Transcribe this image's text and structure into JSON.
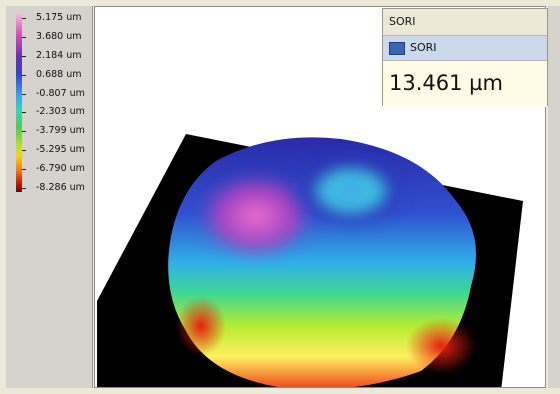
{
  "colorbar": {
    "labels": [
      "5.175 um",
      "3.680 um",
      "2.184 um",
      "0.688 um",
      "-0.807 um",
      "-2.303 um",
      "-3.799 um",
      "-5.295 um",
      "-6.790 um",
      "-8.286 um"
    ]
  },
  "panel": {
    "header": "SORI",
    "item": "SORI",
    "value": "13.461 µm"
  }
}
